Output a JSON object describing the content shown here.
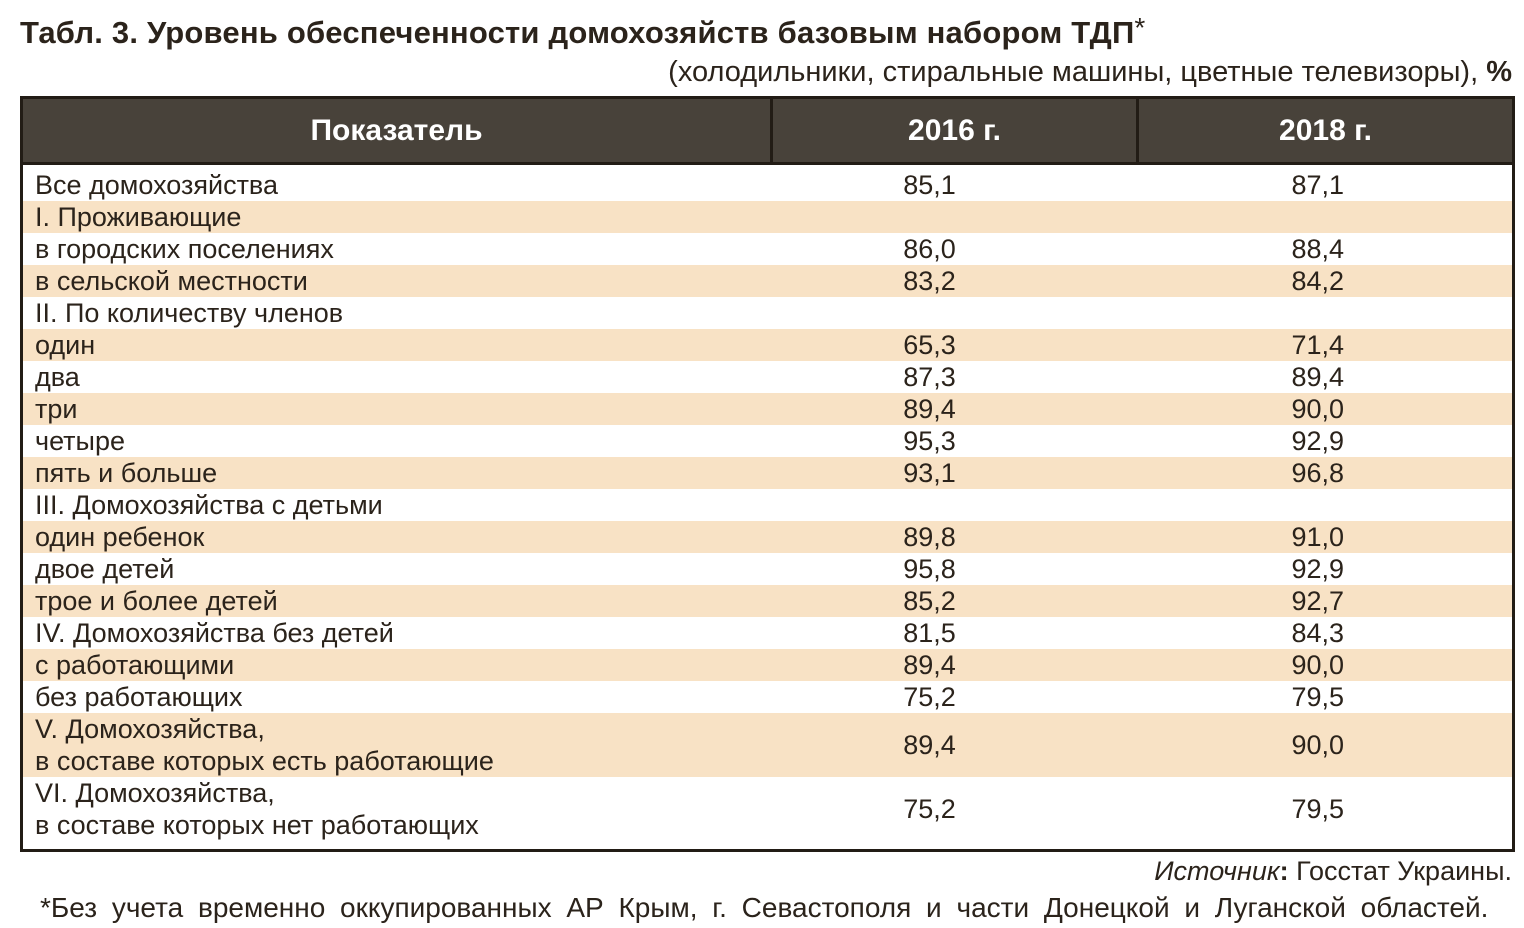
{
  "title": "Табл. 3. Уровень обеспеченности домохозяйств базовым набором ТДП",
  "title_asterisk": "*",
  "subtitle_text": "(холодильники, стиральные машины, цветные телевизоры), ",
  "subtitle_percent": "%",
  "table": {
    "columns": [
      "Показатель",
      "2016 г.",
      "2018 г."
    ],
    "rows": [
      {
        "label": "Все домохозяйства",
        "v2016": "85,1",
        "v2018": "87,1"
      },
      {
        "label": "I. Проживающие",
        "v2016": "",
        "v2018": ""
      },
      {
        "label": "в городских поселениях",
        "v2016": "86,0",
        "v2018": "88,4"
      },
      {
        "label": "в сельской местности",
        "v2016": "83,2",
        "v2018": "84,2"
      },
      {
        "label": "II. По количеству членов",
        "v2016": "",
        "v2018": ""
      },
      {
        "label": "один",
        "v2016": "65,3",
        "v2018": "71,4"
      },
      {
        "label": "два",
        "v2016": "87,3",
        "v2018": "89,4"
      },
      {
        "label": "три",
        "v2016": "89,4",
        "v2018": "90,0"
      },
      {
        "label": "четыре",
        "v2016": "95,3",
        "v2018": "92,9"
      },
      {
        "label": "пять и больше",
        "v2016": "93,1",
        "v2018": "96,8"
      },
      {
        "label": "III. Домохозяйства с детьми",
        "v2016": "",
        "v2018": ""
      },
      {
        "label": "один ребенок",
        "v2016": "89,8",
        "v2018": "91,0"
      },
      {
        "label": "двое детей",
        "v2016": "95,8",
        "v2018": "92,9"
      },
      {
        "label": "трое и более детей",
        "v2016": "85,2",
        "v2018": "92,7"
      },
      {
        "label": "IV. Домохозяйства без детей",
        "v2016": "81,5",
        "v2018": "84,3"
      },
      {
        "label": "с работающими",
        "v2016": "89,4",
        "v2018": "90,0"
      },
      {
        "label": "без работающих",
        "v2016": "75,2",
        "v2018": "79,5"
      },
      {
        "label": "V. Домохозяйства,\nв составе которых есть работающие",
        "v2016": "89,4",
        "v2018": "90,0"
      },
      {
        "label": "VI. Домохозяйства,\nв составе которых нет работающих",
        "v2016": "75,2",
        "v2018": "79,5"
      }
    ]
  },
  "source": {
    "label": "Источник",
    "colon": ":",
    "text": " Госстат Украины."
  },
  "footnote": "*Без учета временно оккупированных АР Крым, г. Севастополя и части Донецкой и Луганской областей.",
  "colors": {
    "header_bg": "#48423a",
    "header_text": "#ffffff",
    "stripe": "#f8e2c5",
    "border": "#221c15",
    "text": "#2b231b"
  }
}
